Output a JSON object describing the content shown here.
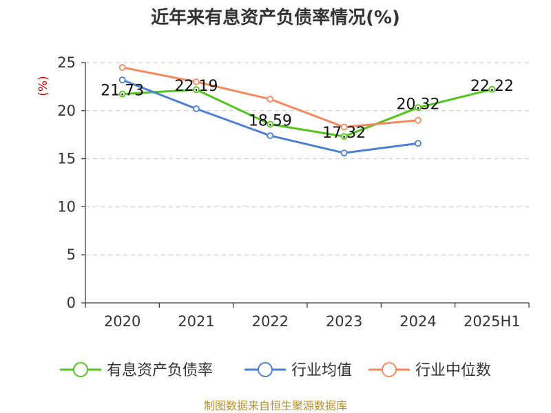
{
  "chart_data": {
    "type": "line",
    "title": "近年来有息资产负债率情况(%)",
    "ylabel": "(%)",
    "categories": [
      "2020",
      "2021",
      "2022",
      "2023",
      "2024",
      "2025H1"
    ],
    "ylim": [
      0,
      25
    ],
    "yticks": [
      0,
      5,
      10,
      15,
      20,
      25
    ],
    "grid": "horizontal dashed",
    "legend_position": "bottom",
    "series": [
      {
        "name": "有息资产负债率",
        "color": "#52c41a",
        "values": [
          21.73,
          22.19,
          18.59,
          17.32,
          20.32,
          22.22
        ],
        "labels": [
          "21.73",
          "22.19",
          "18.59",
          "17.32",
          "20.32",
          "22.22"
        ]
      },
      {
        "name": "行业均值",
        "color": "#4a7fd4",
        "values": [
          23.2,
          20.2,
          17.4,
          15.6,
          16.6,
          null
        ]
      },
      {
        "name": "行业中位数",
        "color": "#f4895f",
        "values": [
          24.5,
          23.0,
          21.2,
          18.3,
          19.0,
          null
        ]
      }
    ],
    "source": "制图数据来自恒生聚源数据库"
  }
}
